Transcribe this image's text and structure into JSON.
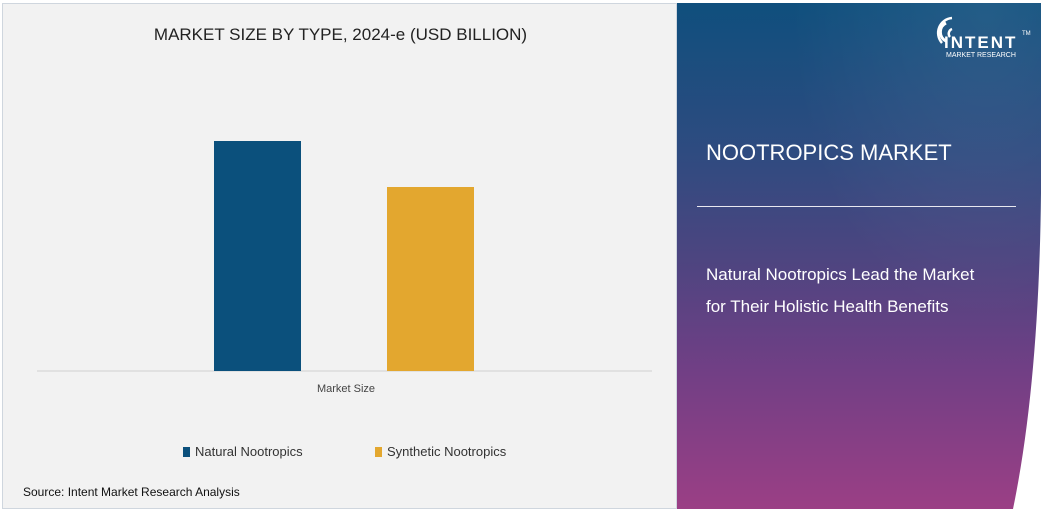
{
  "chart_data": {
    "type": "bar",
    "title": "MARKET SIZE BY TYPE, 2024-e (USD BILLION)",
    "categories": [
      "Market Size"
    ],
    "series": [
      {
        "name": "Natural Nootropics",
        "values": [
          1.0
        ],
        "color": "#0b507c"
      },
      {
        "name": "Synthetic Nootropics",
        "values": [
          0.8
        ],
        "color": "#e3a72f"
      }
    ],
    "xlabel": "Market Size",
    "ylabel": "",
    "grid": false,
    "legend_position": "bottom"
  },
  "source": "Source: Intent Market Research Analysis",
  "panel": {
    "heading": "NOOTROPICS MARKET",
    "subtext_line1": "Natural Nootropics Lead the Market",
    "subtext_line2": "for Their Holistic Health Benefits",
    "logo_text": "INTENT",
    "logo_sub": "MARKET RESEARCH",
    "logo_tm": "TM"
  }
}
